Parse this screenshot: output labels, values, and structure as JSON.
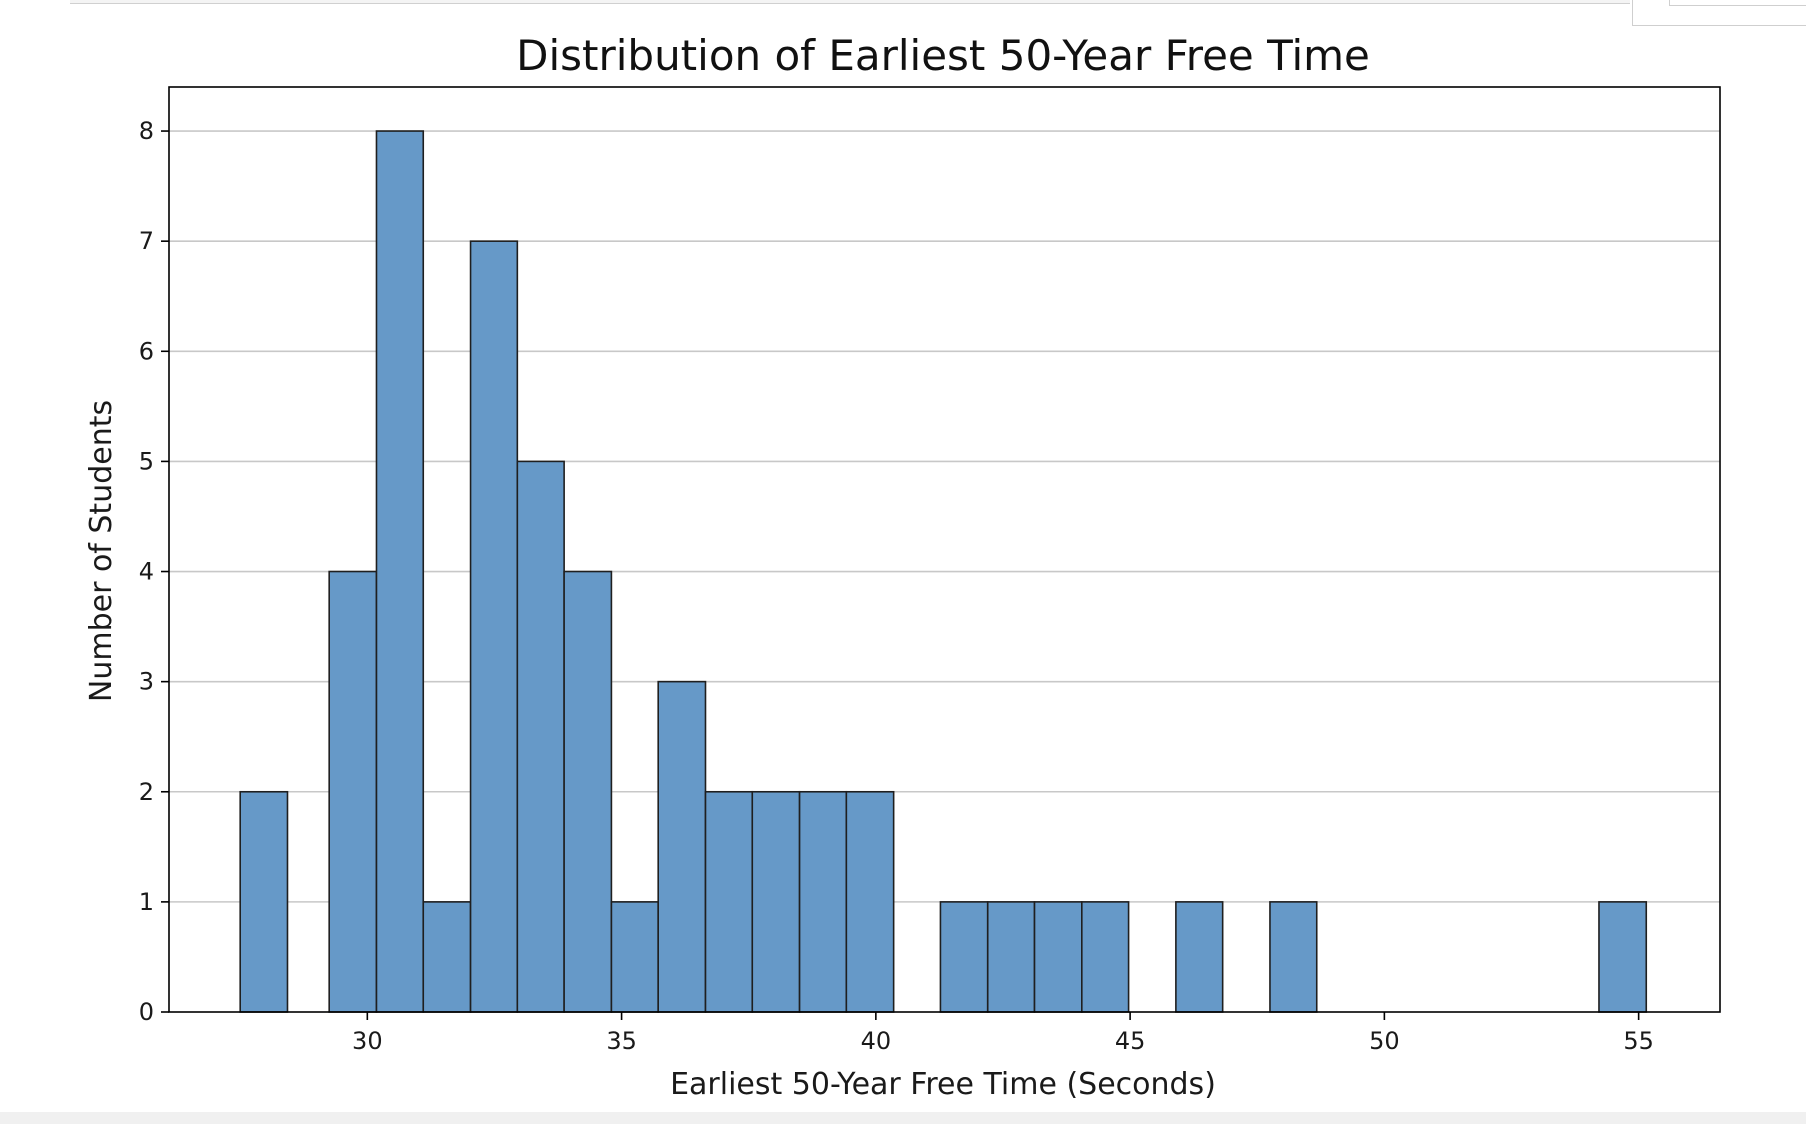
{
  "chart_data": {
    "type": "bar",
    "title": "Distribution of Earliest 50-Year Free Time",
    "xlabel": "Earliest 50-Year Free Time (Seconds)",
    "ylabel": "Number of Students",
    "xlim": [
      26.1,
      56.6
    ],
    "ylim": [
      0,
      8.4
    ],
    "xticks": [
      30,
      35,
      40,
      45,
      50,
      55
    ],
    "yticks": [
      0,
      1,
      2,
      3,
      4,
      5,
      6,
      7,
      8
    ],
    "grid": "y-axis horizontal lines",
    "bar_color": "#6699c8",
    "bar_edge_color": "#1f1f1f",
    "bins": [
      {
        "start": 27.5,
        "end": 28.43,
        "count": 2
      },
      {
        "start": 29.25,
        "end": 30.18,
        "count": 4
      },
      {
        "start": 30.18,
        "end": 31.1,
        "count": 8
      },
      {
        "start": 31.1,
        "end": 32.03,
        "count": 1
      },
      {
        "start": 32.03,
        "end": 32.95,
        "count": 7
      },
      {
        "start": 32.95,
        "end": 33.87,
        "count": 5
      },
      {
        "start": 33.87,
        "end": 34.8,
        "count": 4
      },
      {
        "start": 34.8,
        "end": 35.72,
        "count": 1
      },
      {
        "start": 35.72,
        "end": 36.65,
        "count": 3
      },
      {
        "start": 36.65,
        "end": 37.57,
        "count": 2
      },
      {
        "start": 37.57,
        "end": 38.5,
        "count": 2
      },
      {
        "start": 38.5,
        "end": 39.42,
        "count": 2
      },
      {
        "start": 39.42,
        "end": 40.35,
        "count": 2
      },
      {
        "start": 41.27,
        "end": 42.2,
        "count": 1
      },
      {
        "start": 42.2,
        "end": 43.12,
        "count": 1
      },
      {
        "start": 43.12,
        "end": 44.05,
        "count": 1
      },
      {
        "start": 44.05,
        "end": 44.97,
        "count": 1
      },
      {
        "start": 45.9,
        "end": 46.82,
        "count": 1
      },
      {
        "start": 47.75,
        "end": 48.67,
        "count": 1
      },
      {
        "start": 54.22,
        "end": 55.15,
        "count": 1
      }
    ]
  }
}
